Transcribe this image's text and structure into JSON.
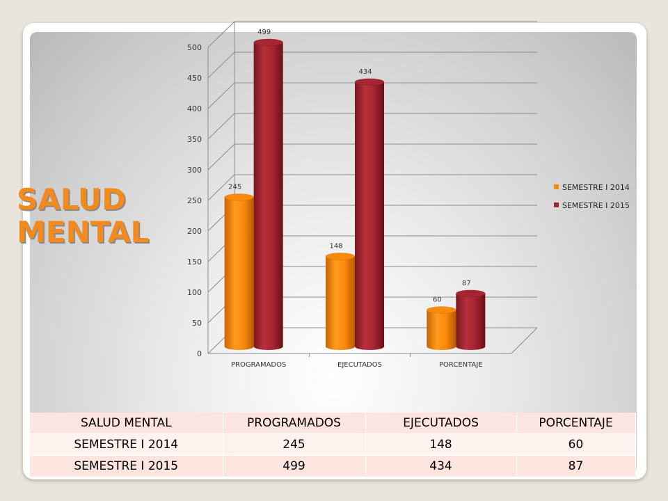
{
  "slide": {
    "title_line1": "SALUD",
    "title_line2": "MENTAL"
  },
  "chart_data": {
    "type": "bar",
    "style": "3d-cylinder",
    "categories": [
      "PROGRAMADOS",
      "EJECUTADOS",
      "PORCENTAJE"
    ],
    "series": [
      {
        "name": "SEMESTRE I 2014",
        "values": [
          245,
          148,
          60
        ],
        "color": "#f98a0c"
      },
      {
        "name": "SEMESTRE I 2015",
        "values": [
          499,
          434,
          87
        ],
        "color": "#a62532"
      }
    ],
    "ylim": [
      0,
      500
    ],
    "yticks": [
      0,
      50,
      100,
      150,
      200,
      250,
      300,
      350,
      400,
      450,
      500
    ],
    "grid": true,
    "legend": "right",
    "data_labels": true,
    "title": "",
    "xlabel": "",
    "ylabel": ""
  },
  "table": {
    "header": [
      "SALUD MENTAL",
      "PROGRAMADOS",
      "EJECUTADOS",
      "PORCENTAJE"
    ],
    "rows": [
      [
        "SEMESTRE I 2014",
        "245",
        "148",
        "60"
      ],
      [
        "SEMESTRE I 2015",
        "499",
        "434",
        "87"
      ]
    ]
  }
}
